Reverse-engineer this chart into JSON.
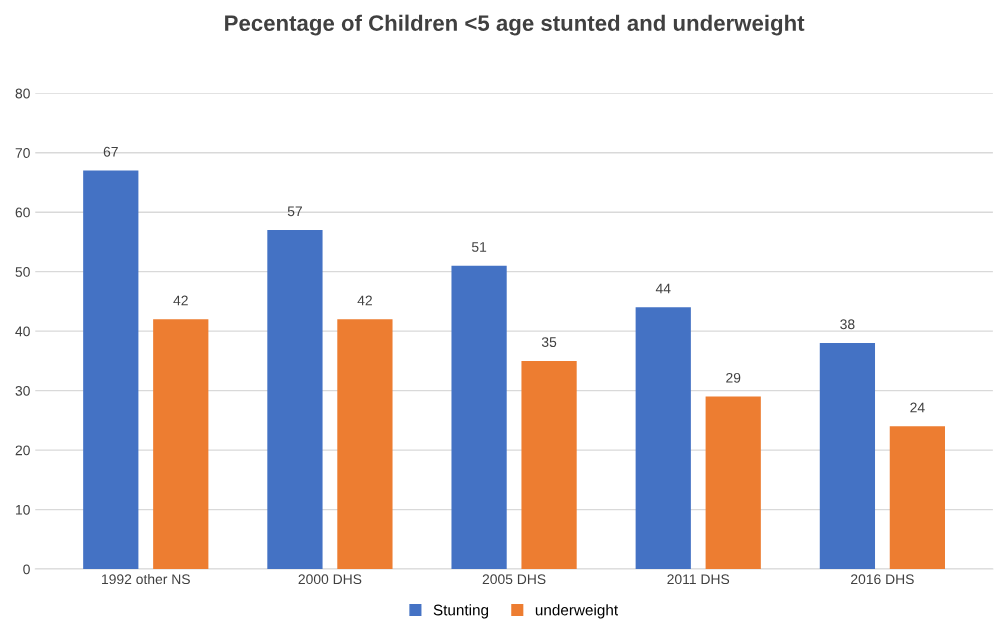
{
  "chart_data": {
    "type": "bar",
    "title": "Pecentage of Children <5 age stunted and underweight",
    "categories": [
      "1992 other NS",
      "2000 DHS",
      "2005 DHS",
      "2011 DHS",
      "2016 DHS"
    ],
    "series": [
      {
        "name": "Stunting",
        "color": "#4472c4",
        "values": [
          67,
          57,
          51,
          44,
          38
        ]
      },
      {
        "name": "underweight",
        "color": "#ed7d31",
        "values": [
          42,
          42,
          35,
          29,
          24
        ]
      }
    ],
    "ylim": [
      0,
      80
    ],
    "yticks": [
      0,
      10,
      20,
      30,
      40,
      50,
      60,
      70,
      80
    ],
    "grid": "y",
    "legend": "bottom",
    "data_labels": true
  }
}
